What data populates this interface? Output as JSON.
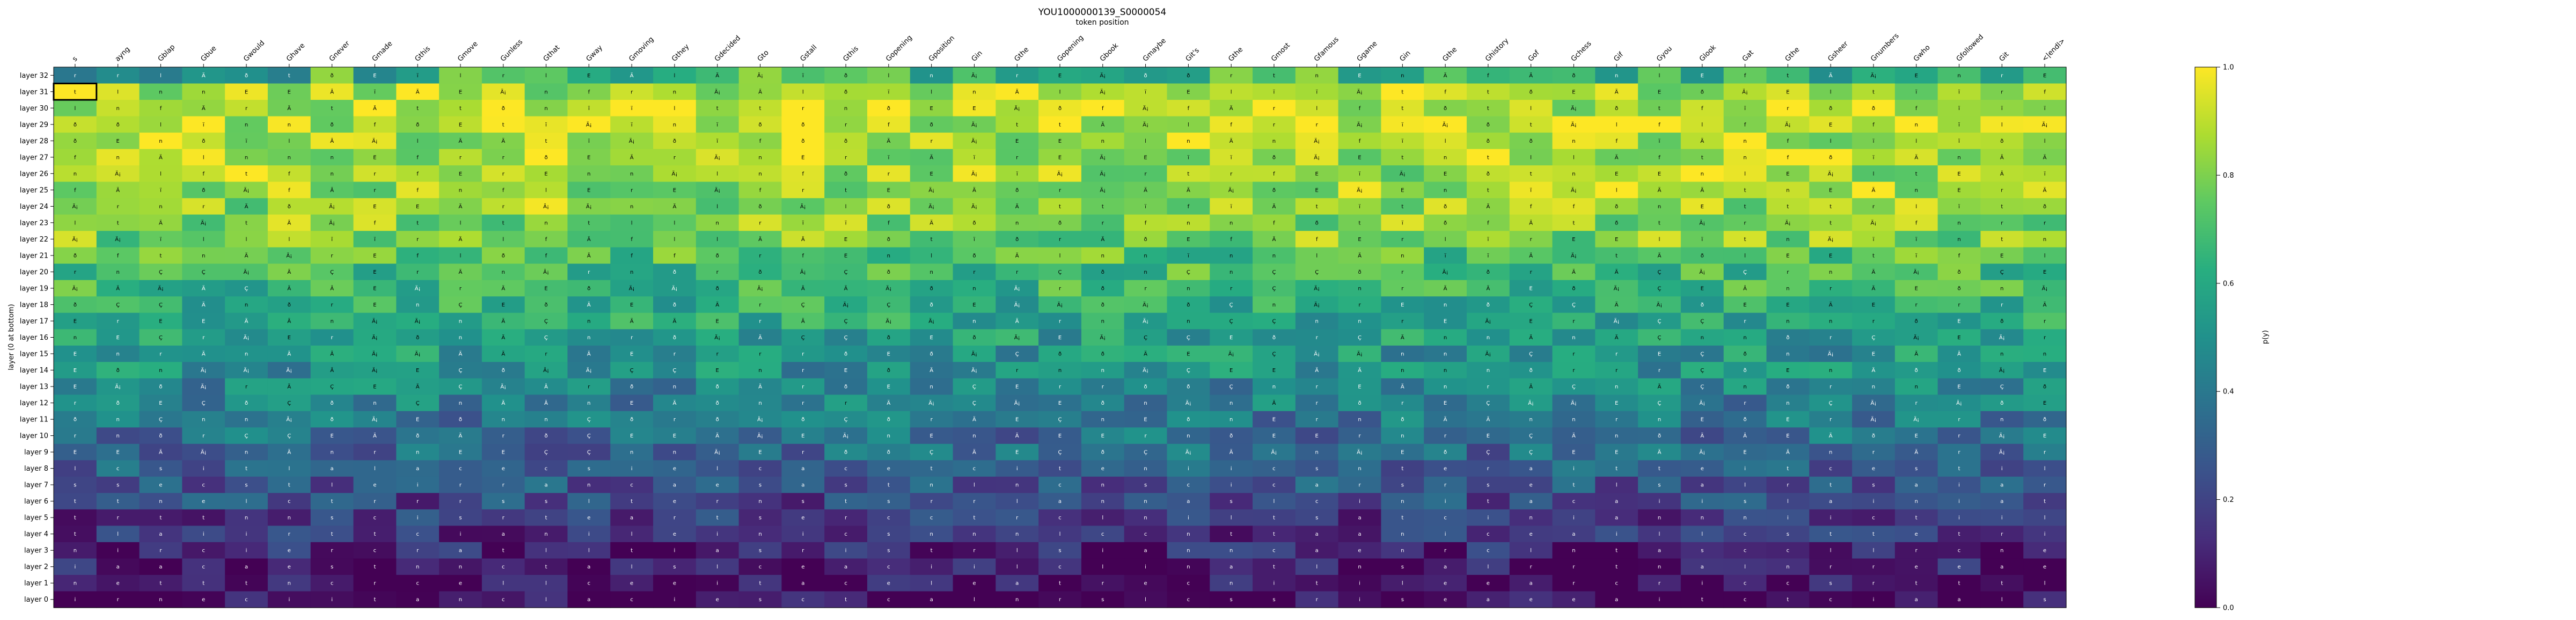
{
  "chart_data": {
    "type": "heatmap",
    "title": "YOU1000000139_S0000054",
    "subtitle": "token position",
    "xlabel": "token position",
    "ylabel": "layer (0 at bottom)",
    "colorbar_label": "p(y)",
    "colorbar_ticks": [
      0.0,
      0.2,
      0.4,
      0.6,
      0.8,
      1.0
    ],
    "colormap": "viridis",
    "value_range": [
      0,
      1
    ],
    "tokens": [
      "s",
      "ayng",
      "Gblap",
      "Gbue",
      "Gwould",
      "Ghave",
      "Gnever",
      "Gmade",
      "Gthis",
      "Gmove",
      "Gunless",
      "Gthat",
      "Gway",
      "Gmoving",
      "Gthey",
      "Gdecided",
      "Gto",
      "Gstall",
      "Gthis",
      "Gopening",
      "Gposition",
      "Gin",
      "Gthe",
      "Gopening",
      "Gbook",
      "Gmaybe",
      "Git's",
      "Gthe",
      "Gmost",
      "Gfamous",
      "Ggame",
      "Gin",
      "Gthe",
      "Ghistory",
      "Gof",
      "Gchess",
      "Gif",
      "Gyou",
      "Glook",
      "Gat",
      "Gthe",
      "Gsheer",
      "Gnumbers",
      "Gwho",
      "Gfollowed",
      "Git",
      "<|endl>"
    ],
    "layers": [
      "layer 32",
      "layer 31",
      "layer 30",
      "layer 29",
      "layer 28",
      "layer 27",
      "layer 26",
      "layer 25",
      "layer 24",
      "layer 23",
      "layer 22",
      "layer 21",
      "layer 20",
      "layer 19",
      "layer 18",
      "layer 17",
      "layer 16",
      "layer 15",
      "layer 14",
      "layer 13",
      "layer 12",
      "layer 11",
      "layer 10",
      "layer 9",
      "layer 8",
      "layer 7",
      "layer 6",
      "layer 5",
      "layer 4",
      "layer 3",
      "layer 2",
      "layer 1",
      "layer 0"
    ],
    "highlight": {
      "layer": "layer 31",
      "token_index": 0
    },
    "row_profile": [
      0.62,
      0.88,
      0.9,
      0.9,
      0.88,
      0.87,
      0.86,
      0.85,
      0.84,
      0.82,
      0.8,
      0.72,
      0.68,
      0.66,
      0.62,
      0.58,
      0.55,
      0.52,
      0.5,
      0.46,
      0.43,
      0.4,
      0.36,
      0.33,
      0.3,
      0.26,
      0.22,
      0.18,
      0.14,
      0.1,
      0.07,
      0.04,
      0.01
    ],
    "cell_label_sets": {
      "top": [
        "E",
        "r",
        "n",
        "t",
        "f",
        "Ä",
        "Ä¡",
        "ð",
        "ï",
        "l"
      ],
      "mid": [
        "Ä",
        "Ä¡",
        "E",
        "n",
        "ð",
        "Ç",
        "r"
      ],
      "low": [
        "a",
        "e",
        "n",
        "l",
        "r",
        "t",
        "s",
        "i",
        "c"
      ]
    }
  }
}
